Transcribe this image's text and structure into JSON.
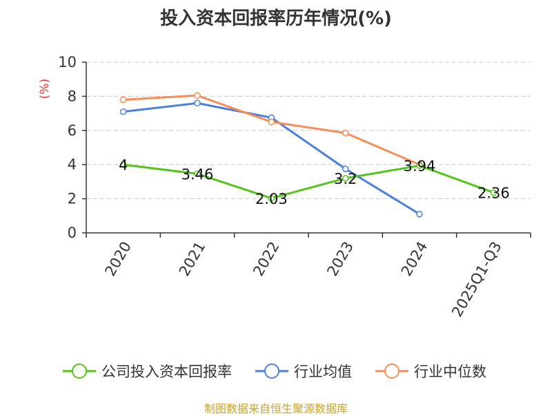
{
  "chart_data": {
    "type": "line",
    "title": "投入资本回报率历年情况(%)",
    "xlabel": "",
    "ylabel": "(%)",
    "categories": [
      "2020",
      "2021",
      "2022",
      "2023",
      "2024",
      "2025Q1-Q3"
    ],
    "ylim": [
      0,
      10
    ],
    "yticks": [
      0,
      2,
      4,
      6,
      8,
      10
    ],
    "grid": true,
    "legend_position": "bottom",
    "series": [
      {
        "name": "公司投入资本回报率",
        "color": "#52c41a",
        "values": [
          4,
          3.46,
          2.03,
          3.2,
          3.94,
          2.36
        ],
        "labels": [
          "4",
          "3.46",
          "2.03",
          "3.2",
          "3.94",
          "2.36"
        ]
      },
      {
        "name": "行业均值",
        "color": "#4a7fe0",
        "values": [
          7.1,
          7.6,
          6.75,
          3.75,
          1.1,
          null
        ]
      },
      {
        "name": "行业中位数",
        "color": "#f58d55",
        "values": [
          7.8,
          8.05,
          6.5,
          5.85,
          4.0,
          null
        ]
      }
    ]
  },
  "source": "制图数据来自恒生聚源数据库"
}
